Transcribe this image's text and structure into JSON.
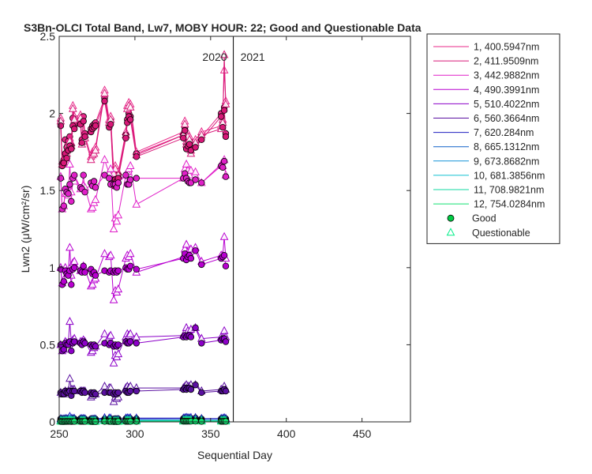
{
  "chart_data": {
    "type": "line",
    "title": "S3Bn-OLCI Total Band, Lw7, MOBY HOUR: 22;  Good and Questionable Data",
    "xlabel": "Sequential Day",
    "ylabel": "Lwn2 (μW/cm²/sr)",
    "xlim": [
      250,
      482
    ],
    "ylim": [
      0,
      2.5
    ],
    "xticks": [
      250,
      300,
      350,
      400,
      450
    ],
    "yticks": [
      0,
      0.5,
      1,
      1.5,
      2,
      2.5
    ],
    "year_divider": {
      "x": 365,
      "left_label": "2020",
      "right_label": "2021"
    },
    "grid": false,
    "legend_position": "outside-right",
    "markers": {
      "good": "Good",
      "questionable": "Questionable",
      "good_face": "#00cc44",
      "questionable_edge": "#00ee88"
    },
    "days": [
      251,
      252,
      253,
      254,
      255,
      256,
      257,
      258,
      259,
      260,
      264,
      265,
      266,
      267,
      271,
      272,
      273,
      274,
      280,
      283,
      284,
      286,
      287,
      288,
      289,
      294,
      295,
      296,
      297,
      301,
      332,
      333,
      334,
      335,
      336,
      337,
      340,
      344,
      357,
      358,
      359,
      360
    ],
    "series": [
      {
        "name": "1, 400.5947nm",
        "color": "#e8298a",
        "good": [
          1.94,
          1.67,
          1.7,
          1.83,
          1.78,
          1.82,
          1.85,
          1.79,
          1.97,
          1.93,
          1.95,
          1.83,
          1.98,
          1.87,
          1.9,
          1.92,
          1.93,
          1.94,
          2.1,
          1.93,
          1.95,
          1.55,
          1.59,
          1.58,
          1.6,
          1.86,
          1.96,
          2.0,
          1.98,
          1.74,
          1.86,
          1.91,
          1.79,
          1.81,
          1.82,
          1.78,
          1.8,
          1.85,
          2.0,
          1.93,
          2.04,
          1.87
        ],
        "questionable": [
          1.97,
          1.69,
          1.7,
          1.73,
          1.76,
          1.82,
          1.84,
          1.81,
          2.05,
          1.98,
          1.99,
          1.82,
          1.84,
          1.86,
          1.72,
          1.75,
          1.76,
          1.78,
          2.15,
          1.96,
          1.98,
          1.63,
          1.66,
          1.6,
          1.62,
          1.88,
          2.05,
          2.07,
          2.06,
          1.75,
          1.88,
          1.95,
          1.82,
          1.87,
          1.85,
          1.76,
          1.83,
          1.88,
          1.92,
          1.96,
          2.28,
          2.08
        ]
      },
      {
        "name": "2, 411.9509nm",
        "color": "#d81878",
        "good": [
          1.92,
          1.66,
          1.68,
          1.74,
          1.71,
          1.76,
          1.79,
          1.77,
          1.92,
          1.9,
          1.93,
          1.81,
          1.95,
          1.85,
          1.88,
          1.9,
          1.91,
          1.92,
          2.08,
          1.91,
          1.93,
          1.53,
          1.57,
          1.56,
          1.58,
          1.84,
          1.94,
          1.98,
          1.96,
          1.72,
          1.84,
          1.89,
          1.77,
          1.79,
          1.8,
          1.76,
          1.78,
          1.83,
          1.98,
          1.91,
          2.02,
          1.85
        ],
        "questionable": [
          1.95,
          1.67,
          1.68,
          1.71,
          1.74,
          1.8,
          1.82,
          1.79,
          2.03,
          1.96,
          1.97,
          1.8,
          1.82,
          1.84,
          1.7,
          1.73,
          1.74,
          1.76,
          2.13,
          1.94,
          1.96,
          1.61,
          1.64,
          1.58,
          1.6,
          1.86,
          2.03,
          2.05,
          2.04,
          1.73,
          1.86,
          1.93,
          1.8,
          1.85,
          1.83,
          1.74,
          1.81,
          1.86,
          1.9,
          1.94,
          2.38,
          2.06
        ]
      },
      {
        "name": "3, 442.9882nm",
        "color": "#e020c8",
        "good": [
          1.58,
          1.38,
          1.4,
          1.51,
          1.49,
          1.48,
          1.54,
          1.43,
          1.58,
          1.6,
          1.52,
          1.51,
          1.6,
          1.49,
          1.55,
          1.53,
          1.56,
          1.52,
          1.6,
          1.58,
          1.54,
          1.54,
          1.54,
          1.52,
          1.55,
          1.6,
          1.54,
          1.54,
          1.57,
          1.58,
          1.58,
          1.61,
          1.58,
          1.56,
          1.55,
          1.55,
          1.57,
          1.55,
          1.66,
          1.65,
          1.69,
          1.59
        ],
        "questionable": [
          1.59,
          1.38,
          1.4,
          1.48,
          1.48,
          1.47,
          1.67,
          1.49,
          1.56,
          1.56,
          1.51,
          1.52,
          1.53,
          1.52,
          1.38,
          1.39,
          1.42,
          1.44,
          1.7,
          1.61,
          1.64,
          1.25,
          1.32,
          1.3,
          1.34,
          1.6,
          1.62,
          1.64,
          1.66,
          1.41,
          1.58,
          1.64,
          1.67,
          1.63,
          1.6,
          1.63,
          1.62,
          1.55,
          1.67,
          1.66,
          1.7,
          1.6
        ]
      },
      {
        "name": "4, 490.3991nm",
        "color": "#b800d0",
        "good": [
          0.99,
          0.89,
          0.91,
          0.98,
          0.96,
          0.95,
          0.98,
          0.89,
          0.99,
          1.0,
          0.98,
          0.97,
          1.01,
          0.97,
          0.99,
          0.96,
          0.97,
          0.95,
          0.98,
          0.97,
          0.98,
          0.97,
          0.98,
          0.97,
          0.98,
          1.0,
          0.99,
          0.99,
          1.01,
          0.99,
          1.06,
          1.09,
          1.05,
          1.07,
          1.08,
          1.06,
          1.11,
          1.02,
          1.06,
          1.07,
          1.08,
          1.01
        ],
        "questionable": [
          1.0,
          0.9,
          0.92,
          1.0,
          0.98,
          0.97,
          1.13,
          0.95,
          1.03,
          1.04,
          0.98,
          1.0,
          1.01,
          0.99,
          0.88,
          0.89,
          0.92,
          0.93,
          1.09,
          1.07,
          1.08,
          0.79,
          0.85,
          0.84,
          0.86,
          1.06,
          1.08,
          1.07,
          1.09,
          0.97,
          1.07,
          1.12,
          1.15,
          1.1,
          1.09,
          1.12,
          1.13,
          1.04,
          1.08,
          1.08,
          1.2,
          1.06
        ]
      },
      {
        "name": "5, 510.4022nm",
        "color": "#8c00c8",
        "good": [
          0.5,
          0.46,
          0.47,
          0.51,
          0.5,
          0.5,
          0.52,
          0.46,
          0.51,
          0.52,
          0.51,
          0.5,
          0.52,
          0.51,
          0.5,
          0.49,
          0.5,
          0.49,
          0.51,
          0.5,
          0.51,
          0.49,
          0.5,
          0.49,
          0.5,
          0.52,
          0.51,
          0.51,
          0.52,
          0.51,
          0.55,
          0.56,
          0.55,
          0.56,
          0.56,
          0.55,
          0.61,
          0.51,
          0.53,
          0.54,
          0.54,
          0.52
        ],
        "questionable": [
          0.5,
          0.46,
          0.47,
          0.52,
          0.51,
          0.51,
          0.65,
          0.52,
          0.53,
          0.54,
          0.52,
          0.52,
          0.53,
          0.52,
          0.45,
          0.46,
          0.48,
          0.49,
          0.57,
          0.55,
          0.56,
          0.38,
          0.43,
          0.42,
          0.44,
          0.55,
          0.57,
          0.56,
          0.57,
          0.55,
          0.56,
          0.58,
          0.61,
          0.59,
          0.58,
          0.6,
          0.61,
          0.54,
          0.55,
          0.55,
          0.59,
          0.55
        ]
      },
      {
        "name": "6, 560.3664nm",
        "color": "#5a10a0",
        "good": [
          0.19,
          0.18,
          0.18,
          0.2,
          0.19,
          0.19,
          0.2,
          0.17,
          0.2,
          0.2,
          0.2,
          0.19,
          0.2,
          0.19,
          0.19,
          0.18,
          0.19,
          0.18,
          0.19,
          0.19,
          0.19,
          0.18,
          0.19,
          0.18,
          0.19,
          0.2,
          0.19,
          0.19,
          0.2,
          0.2,
          0.21,
          0.22,
          0.21,
          0.22,
          0.22,
          0.21,
          0.24,
          0.19,
          0.2,
          0.2,
          0.21,
          0.2
        ],
        "questionable": [
          0.19,
          0.18,
          0.18,
          0.2,
          0.19,
          0.2,
          0.28,
          0.21,
          0.21,
          0.21,
          0.2,
          0.2,
          0.2,
          0.2,
          0.16,
          0.17,
          0.18,
          0.18,
          0.23,
          0.22,
          0.22,
          0.13,
          0.16,
          0.15,
          0.16,
          0.22,
          0.23,
          0.22,
          0.23,
          0.22,
          0.22,
          0.23,
          0.24,
          0.23,
          0.23,
          0.24,
          0.24,
          0.2,
          0.21,
          0.21,
          0.23,
          0.21
        ]
      },
      {
        "name": "7,  620.284nm",
        "color": "#2020c0",
        "good": [
          0.02,
          0.018,
          0.018,
          0.02,
          0.019,
          0.019,
          0.02,
          0.017,
          0.02,
          0.02,
          0.02,
          0.019,
          0.02,
          0.019,
          0.019,
          0.018,
          0.019,
          0.018,
          0.019,
          0.019,
          0.019,
          0.018,
          0.019,
          0.018,
          0.019,
          0.02,
          0.019,
          0.019,
          0.02,
          0.02,
          0.021,
          0.022,
          0.021,
          0.022,
          0.022,
          0.021,
          0.024,
          0.019,
          0.02,
          0.02,
          0.021,
          0.02
        ],
        "questionable": [
          0.02,
          0.018,
          0.018,
          0.021,
          0.02,
          0.02,
          0.035,
          0.022,
          0.022,
          0.022,
          0.02,
          0.021,
          0.021,
          0.02,
          0.016,
          0.017,
          0.018,
          0.018,
          0.026,
          0.024,
          0.024,
          0.012,
          0.015,
          0.014,
          0.016,
          0.024,
          0.025,
          0.024,
          0.025,
          0.024,
          0.024,
          0.026,
          0.028,
          0.026,
          0.025,
          0.027,
          0.027,
          0.021,
          0.022,
          0.022,
          0.026,
          0.022
        ]
      },
      {
        "name": "8, 665.1312nm",
        "color": "#1060c8",
        "good": [
          0.01,
          0.009,
          0.009,
          0.01,
          0.01,
          0.01,
          0.01,
          0.009,
          0.01,
          0.01,
          0.01,
          0.01,
          0.01,
          0.01,
          0.01,
          0.009,
          0.01,
          0.009,
          0.01,
          0.01,
          0.01,
          0.009,
          0.01,
          0.009,
          0.01,
          0.01,
          0.01,
          0.01,
          0.01,
          0.01,
          0.011,
          0.011,
          0.011,
          0.011,
          0.011,
          0.011,
          0.012,
          0.01,
          0.01,
          0.01,
          0.011,
          0.01
        ],
        "questionable": [
          0.01,
          0.009,
          0.009,
          0.011,
          0.01,
          0.01,
          0.018,
          0.011,
          0.011,
          0.011,
          0.01,
          0.011,
          0.011,
          0.01,
          0.008,
          0.009,
          0.009,
          0.009,
          0.013,
          0.012,
          0.012,
          0.006,
          0.008,
          0.007,
          0.008,
          0.012,
          0.013,
          0.012,
          0.013,
          0.012,
          0.012,
          0.013,
          0.014,
          0.013,
          0.013,
          0.014,
          0.014,
          0.011,
          0.011,
          0.011,
          0.013,
          0.011
        ]
      },
      {
        "name": "9, 673.8682nm",
        "color": "#1090d8",
        "good": [
          0.009,
          0.008,
          0.008,
          0.009,
          0.009,
          0.009,
          0.009,
          0.008,
          0.009,
          0.009,
          0.009,
          0.009,
          0.009,
          0.009,
          0.009,
          0.008,
          0.009,
          0.008,
          0.009,
          0.009,
          0.009,
          0.008,
          0.009,
          0.008,
          0.009,
          0.009,
          0.009,
          0.009,
          0.009,
          0.009,
          0.01,
          0.01,
          0.01,
          0.01,
          0.01,
          0.01,
          0.011,
          0.009,
          0.009,
          0.009,
          0.01,
          0.009
        ],
        "questionable": [
          0.009,
          0.008,
          0.008,
          0.01,
          0.009,
          0.009,
          0.016,
          0.01,
          0.01,
          0.01,
          0.009,
          0.01,
          0.01,
          0.009,
          0.007,
          0.008,
          0.008,
          0.008,
          0.012,
          0.011,
          0.011,
          0.005,
          0.007,
          0.006,
          0.007,
          0.011,
          0.012,
          0.011,
          0.012,
          0.011,
          0.011,
          0.012,
          0.013,
          0.012,
          0.012,
          0.013,
          0.013,
          0.01,
          0.01,
          0.01,
          0.012,
          0.01
        ]
      },
      {
        "name": "10, 681.3856nm",
        "color": "#10c0d0",
        "good": [
          0.008,
          0.007,
          0.007,
          0.008,
          0.008,
          0.008,
          0.008,
          0.007,
          0.008,
          0.008,
          0.008,
          0.008,
          0.008,
          0.008,
          0.008,
          0.007,
          0.008,
          0.007,
          0.008,
          0.008,
          0.008,
          0.007,
          0.008,
          0.007,
          0.008,
          0.008,
          0.008,
          0.008,
          0.008,
          0.008,
          0.009,
          0.009,
          0.009,
          0.009,
          0.009,
          0.009,
          0.01,
          0.008,
          0.008,
          0.008,
          0.009,
          0.008
        ],
        "questionable": [
          0.008,
          0.007,
          0.007,
          0.009,
          0.008,
          0.008,
          0.015,
          0.009,
          0.009,
          0.009,
          0.008,
          0.009,
          0.009,
          0.008,
          0.006,
          0.007,
          0.007,
          0.007,
          0.011,
          0.01,
          0.01,
          0.004,
          0.006,
          0.005,
          0.006,
          0.01,
          0.011,
          0.01,
          0.011,
          0.01,
          0.01,
          0.011,
          0.012,
          0.011,
          0.011,
          0.012,
          0.012,
          0.009,
          0.009,
          0.009,
          0.011,
          0.009
        ]
      },
      {
        "name": "11, 708.9821nm",
        "color": "#10d8a0",
        "good": [
          0.005,
          0.004,
          0.004,
          0.005,
          0.005,
          0.005,
          0.005,
          0.004,
          0.005,
          0.005,
          0.005,
          0.005,
          0.005,
          0.005,
          0.005,
          0.004,
          0.005,
          0.004,
          0.005,
          0.005,
          0.005,
          0.004,
          0.005,
          0.004,
          0.005,
          0.005,
          0.005,
          0.005,
          0.005,
          0.005,
          0.006,
          0.006,
          0.006,
          0.006,
          0.006,
          0.006,
          0.006,
          0.005,
          0.005,
          0.005,
          0.006,
          0.005
        ],
        "questionable": [
          0.005,
          0.004,
          0.004,
          0.006,
          0.005,
          0.005,
          0.01,
          0.006,
          0.006,
          0.006,
          0.005,
          0.006,
          0.006,
          0.005,
          0.004,
          0.004,
          0.004,
          0.004,
          0.007,
          0.006,
          0.006,
          0.003,
          0.004,
          0.003,
          0.004,
          0.006,
          0.007,
          0.006,
          0.007,
          0.006,
          0.006,
          0.007,
          0.008,
          0.007,
          0.007,
          0.008,
          0.008,
          0.006,
          0.006,
          0.006,
          0.007,
          0.006
        ]
      },
      {
        "name": "12, 754.0284nm",
        "color": "#10e070",
        "good": [
          0.003,
          0.002,
          0.002,
          0.003,
          0.003,
          0.003,
          0.003,
          0.002,
          0.003,
          0.003,
          0.003,
          0.003,
          0.003,
          0.003,
          0.003,
          0.002,
          0.003,
          0.002,
          0.003,
          0.003,
          0.003,
          0.002,
          0.003,
          0.002,
          0.003,
          0.003,
          0.003,
          0.003,
          0.003,
          0.003,
          0.004,
          0.004,
          0.004,
          0.004,
          0.004,
          0.004,
          0.004,
          0.003,
          0.003,
          0.003,
          0.004,
          0.003
        ],
        "questionable": [
          0.003,
          0.002,
          0.002,
          0.004,
          0.003,
          0.003,
          0.006,
          0.004,
          0.004,
          0.004,
          0.003,
          0.004,
          0.004,
          0.003,
          0.002,
          0.002,
          0.002,
          0.002,
          0.005,
          0.004,
          0.004,
          0.002,
          0.002,
          0.002,
          0.002,
          0.004,
          0.005,
          0.004,
          0.005,
          0.004,
          0.004,
          0.005,
          0.005,
          0.005,
          0.005,
          0.005,
          0.005,
          0.004,
          0.004,
          0.004,
          0.005,
          0.004
        ]
      }
    ]
  }
}
